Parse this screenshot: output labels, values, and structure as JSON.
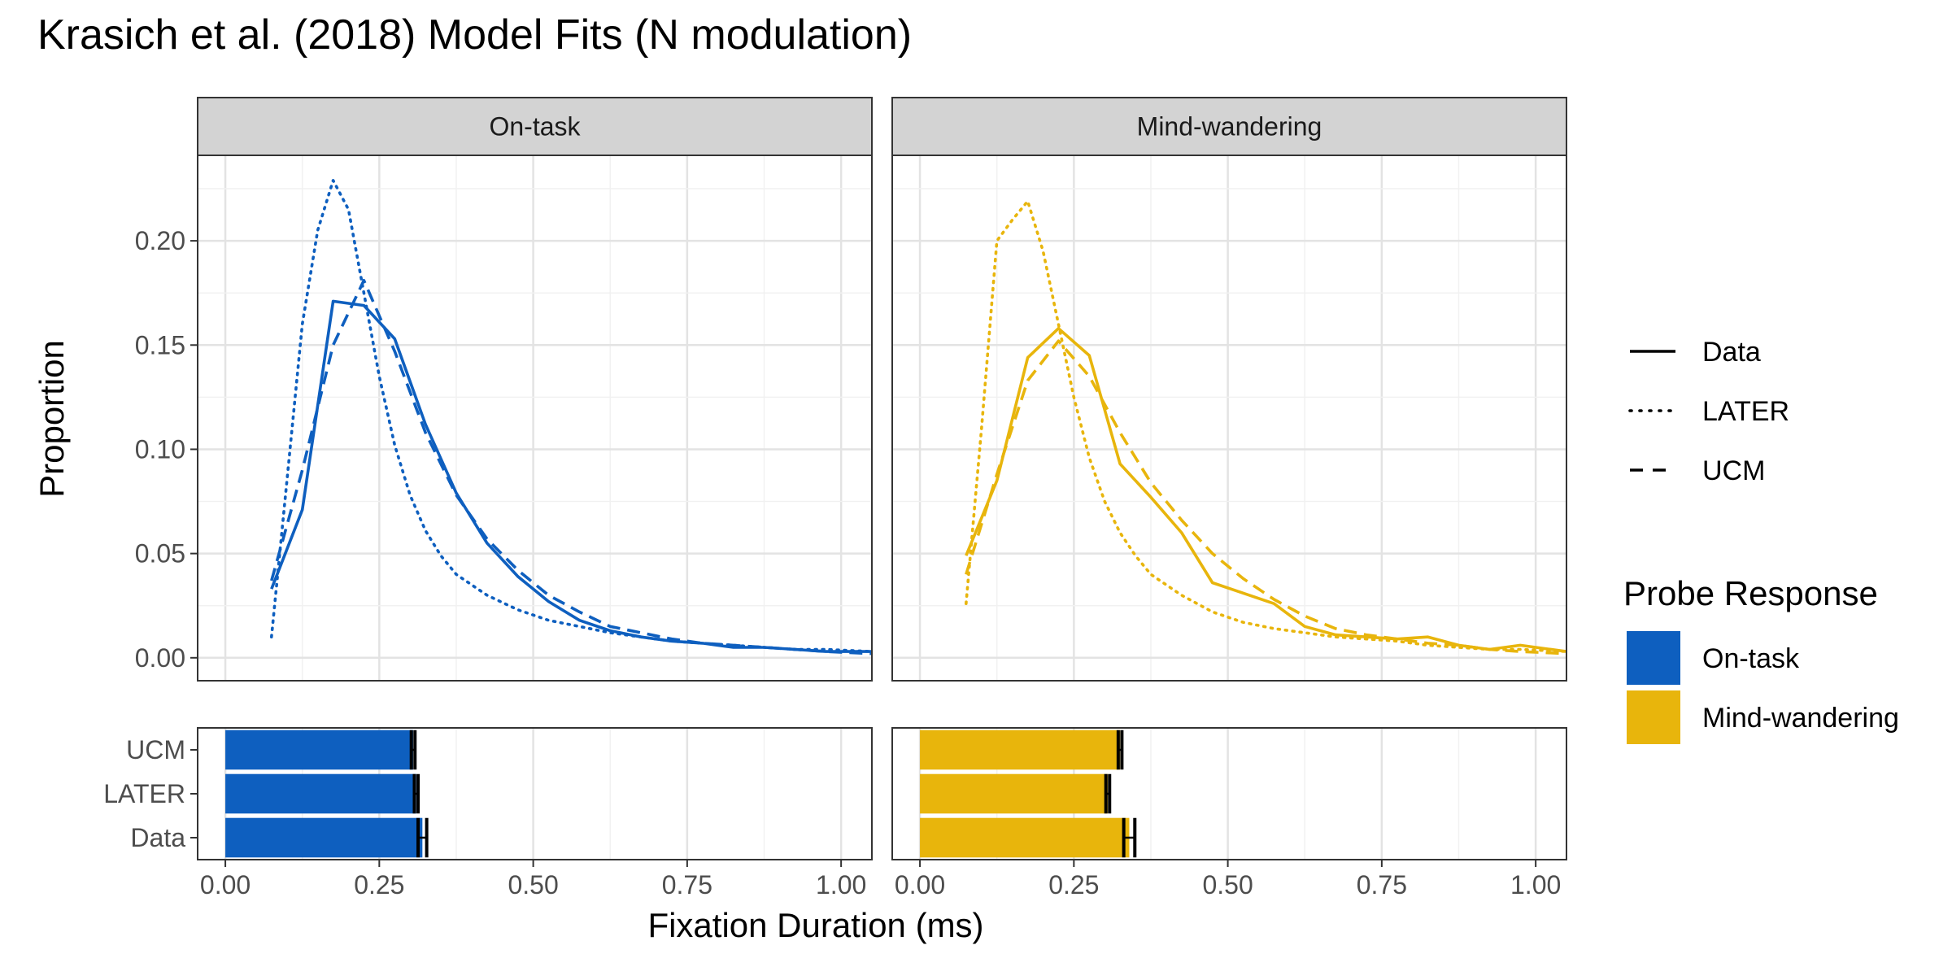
{
  "chart_data": {
    "type": "line",
    "title": "Krasich et al. (2018) Model Fits (N modulation)",
    "xlabel": "Fixation Duration (ms)",
    "ylabel": "Proportion",
    "xlim": [
      -0.045,
      1.05
    ],
    "ylim": [
      -0.011,
      0.241
    ],
    "xticks": [
      0.0,
      0.25,
      0.5,
      0.75,
      1.0
    ],
    "xtick_labels": [
      "0.00",
      "0.25",
      "0.50",
      "0.75",
      "1.00"
    ],
    "yticks": [
      0.0,
      0.05,
      0.1,
      0.15,
      0.2
    ],
    "ytick_labels": [
      "0.00",
      "0.05",
      "0.10",
      "0.15",
      "0.20"
    ],
    "grid": true,
    "facets": [
      {
        "label": "On-task",
        "color": "#0E5FBF",
        "series": [
          {
            "name": "Data",
            "linetype": "solid",
            "points": [
              [
                0.075,
                0.033
              ],
              [
                0.125,
                0.071
              ],
              [
                0.175,
                0.171
              ],
              [
                0.225,
                0.169
              ],
              [
                0.275,
                0.153
              ],
              [
                0.325,
                0.112
              ],
              [
                0.375,
                0.079
              ],
              [
                0.425,
                0.055
              ],
              [
                0.475,
                0.039
              ],
              [
                0.525,
                0.027
              ],
              [
                0.575,
                0.018
              ],
              [
                0.625,
                0.013
              ],
              [
                0.675,
                0.01
              ],
              [
                0.725,
                0.008
              ],
              [
                0.775,
                0.007
              ],
              [
                0.825,
                0.005
              ],
              [
                0.875,
                0.005
              ],
              [
                0.925,
                0.004
              ],
              [
                0.975,
                0.003
              ],
              [
                1.05,
                0.003
              ]
            ]
          },
          {
            "name": "LATER",
            "linetype": "dotted",
            "points": [
              [
                0.075,
                0.01
              ],
              [
                0.1,
                0.085
              ],
              [
                0.125,
                0.16
              ],
              [
                0.15,
                0.205
              ],
              [
                0.175,
                0.229
              ],
              [
                0.2,
                0.215
              ],
              [
                0.225,
                0.175
              ],
              [
                0.25,
                0.135
              ],
              [
                0.275,
                0.102
              ],
              [
                0.3,
                0.078
              ],
              [
                0.325,
                0.061
              ],
              [
                0.35,
                0.049
              ],
              [
                0.375,
                0.04
              ],
              [
                0.425,
                0.03
              ],
              [
                0.475,
                0.023
              ],
              [
                0.525,
                0.018
              ],
              [
                0.575,
                0.015
              ],
              [
                0.625,
                0.012
              ],
              [
                0.675,
                0.01
              ],
              [
                0.725,
                0.008
              ],
              [
                0.775,
                0.007
              ],
              [
                0.825,
                0.006
              ],
              [
                0.875,
                0.005
              ],
              [
                0.925,
                0.004
              ],
              [
                0.975,
                0.004
              ],
              [
                1.05,
                0.003
              ]
            ]
          },
          {
            "name": "UCM",
            "linetype": "dashed",
            "points": [
              [
                0.075,
                0.037
              ],
              [
                0.125,
                0.09
              ],
              [
                0.175,
                0.15
              ],
              [
                0.225,
                0.181
              ],
              [
                0.275,
                0.147
              ],
              [
                0.325,
                0.108
              ],
              [
                0.375,
                0.078
              ],
              [
                0.425,
                0.057
              ],
              [
                0.475,
                0.042
              ],
              [
                0.525,
                0.03
              ],
              [
                0.575,
                0.022
              ],
              [
                0.625,
                0.015
              ],
              [
                0.675,
                0.012
              ],
              [
                0.725,
                0.009
              ],
              [
                0.775,
                0.007
              ],
              [
                0.825,
                0.006
              ],
              [
                0.875,
                0.005
              ],
              [
                0.925,
                0.004
              ],
              [
                0.975,
                0.003
              ],
              [
                1.05,
                0.002
              ]
            ]
          }
        ],
        "bars": [
          {
            "category": "UCM",
            "value": 0.305,
            "error": 0.003
          },
          {
            "category": "LATER",
            "value": 0.31,
            "error": 0.003
          },
          {
            "category": "Data",
            "value": 0.32,
            "error": 0.007
          }
        ]
      },
      {
        "label": "Mind-wandering",
        "color": "#E8B50C",
        "series": [
          {
            "name": "Data",
            "linetype": "solid",
            "points": [
              [
                0.075,
                0.049
              ],
              [
                0.125,
                0.085
              ],
              [
                0.175,
                0.144
              ],
              [
                0.225,
                0.158
              ],
              [
                0.275,
                0.145
              ],
              [
                0.325,
                0.093
              ],
              [
                0.375,
                0.077
              ],
              [
                0.425,
                0.06
              ],
              [
                0.475,
                0.036
              ],
              [
                0.525,
                0.031
              ],
              [
                0.575,
                0.026
              ],
              [
                0.625,
                0.015
              ],
              [
                0.675,
                0.011
              ],
              [
                0.725,
                0.01
              ],
              [
                0.775,
                0.009
              ],
              [
                0.825,
                0.01
              ],
              [
                0.875,
                0.006
              ],
              [
                0.925,
                0.004
              ],
              [
                0.975,
                0.006
              ],
              [
                1.05,
                0.003
              ]
            ]
          },
          {
            "name": "LATER",
            "linetype": "dotted",
            "points": [
              [
                0.075,
                0.026
              ],
              [
                0.1,
                0.11
              ],
              [
                0.125,
                0.2
              ],
              [
                0.15,
                0.21
              ],
              [
                0.175,
                0.219
              ],
              [
                0.2,
                0.195
              ],
              [
                0.225,
                0.16
              ],
              [
                0.25,
                0.125
              ],
              [
                0.275,
                0.096
              ],
              [
                0.3,
                0.075
              ],
              [
                0.325,
                0.06
              ],
              [
                0.35,
                0.049
              ],
              [
                0.375,
                0.04
              ],
              [
                0.425,
                0.03
              ],
              [
                0.475,
                0.022
              ],
              [
                0.525,
                0.017
              ],
              [
                0.575,
                0.014
              ],
              [
                0.625,
                0.012
              ],
              [
                0.675,
                0.01
              ],
              [
                0.725,
                0.009
              ],
              [
                0.775,
                0.008
              ],
              [
                0.825,
                0.006
              ],
              [
                0.875,
                0.005
              ],
              [
                0.925,
                0.004
              ],
              [
                0.975,
                0.004
              ],
              [
                1.05,
                0.003
              ]
            ]
          },
          {
            "name": "UCM",
            "linetype": "dashed",
            "points": [
              [
                0.075,
                0.04
              ],
              [
                0.125,
                0.088
              ],
              [
                0.175,
                0.133
              ],
              [
                0.225,
                0.152
              ],
              [
                0.275,
                0.135
              ],
              [
                0.325,
                0.108
              ],
              [
                0.375,
                0.084
              ],
              [
                0.425,
                0.066
              ],
              [
                0.475,
                0.05
              ],
              [
                0.525,
                0.038
              ],
              [
                0.575,
                0.028
              ],
              [
                0.625,
                0.02
              ],
              [
                0.675,
                0.014
              ],
              [
                0.725,
                0.011
              ],
              [
                0.775,
                0.009
              ],
              [
                0.825,
                0.007
              ],
              [
                0.875,
                0.006
              ],
              [
                0.925,
                0.004
              ],
              [
                0.975,
                0.003
              ],
              [
                1.05,
                0.002
              ]
            ]
          }
        ],
        "bars": [
          {
            "category": "UCM",
            "value": 0.325,
            "error": 0.003
          },
          {
            "category": "LATER",
            "value": 0.305,
            "error": 0.003
          },
          {
            "category": "Data",
            "value": 0.34,
            "error": 0.009
          }
        ]
      }
    ],
    "bar_categories": [
      "UCM",
      "LATER",
      "Data"
    ],
    "legend": {
      "position": "right",
      "linetype_entries": [
        {
          "label": "Data",
          "linetype": "solid"
        },
        {
          "label": "LATER",
          "linetype": "dotted"
        },
        {
          "label": "UCM",
          "linetype": "dashed"
        }
      ],
      "fill_title": "Probe Response",
      "fill_entries": [
        {
          "label": "On-task",
          "color": "#0E5FBF"
        },
        {
          "label": "Mind-wandering",
          "color": "#E8B50C"
        }
      ]
    },
    "colors": {
      "on_task": "#0E5FBF",
      "mind_wandering": "#E8B50C",
      "strip_bg": "#D3D3D3",
      "grid_major": "#E3E3E3",
      "grid_minor": "#F1F1F1"
    }
  }
}
